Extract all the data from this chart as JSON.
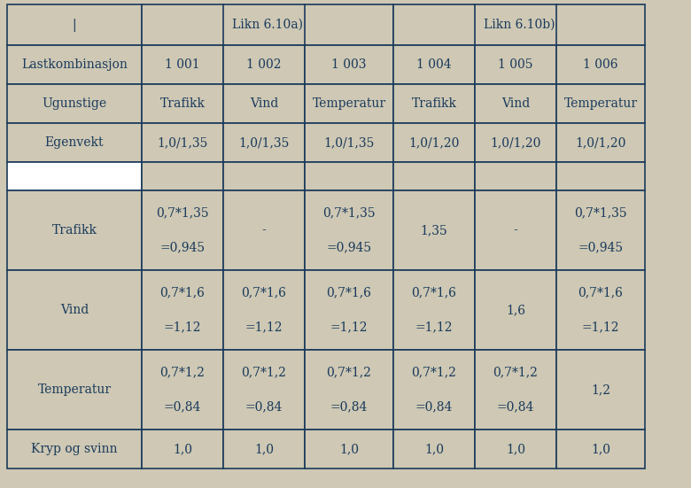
{
  "bg_color": "#cec8b4",
  "white_color": "#ffffff",
  "text_color": "#1a3a5c",
  "border_color": "#1a3a5c",
  "figsize": [
    7.8,
    5.51
  ],
  "dpi": 100,
  "row_header": [
    "",
    "Likn 6.10a)",
    "Likn 6.10b)"
  ],
  "row2": [
    "Lastkombinasjon",
    "1 001",
    "1 002",
    "1 003",
    "1 004",
    "1 005",
    "1 006"
  ],
  "row3": [
    "Ugunstige",
    "Trafikk",
    "Vind",
    "Temperatur",
    "Trafikk",
    "Vind",
    "Temperatur"
  ],
  "row4": [
    "Egenvekt",
    "1,0/1,35",
    "1,0/1,35",
    "1,0/1,35",
    "1,0/1,20",
    "1,0/1,20",
    "1,0/1,20"
  ],
  "row5": [
    "",
    "",
    "",
    "",
    "",
    "",
    ""
  ],
  "row6_label": "Trafikk",
  "row6": [
    "",
    "0,7*1,35\n\n=0,945",
    "-",
    "0,7*1,35\n\n=0,945",
    "1,35",
    "-",
    "0,7*1,35\n\n=0,945"
  ],
  "row7_label": "Vind",
  "row7": [
    "",
    "0,7*1,6\n\n=1,12",
    "0,7*1,6\n\n=1,12",
    "0,7*1,6\n\n=1,12",
    "0,7*1,6\n\n=1,12",
    "1,6",
    "0,7*1,6\n\n=1,12"
  ],
  "row8_label": "Temperatur",
  "row8": [
    "",
    "0,7*1,2\n\n=0,84",
    "0,7*1,2\n\n=0,84",
    "0,7*1,2\n\n=0,84",
    "0,7*1,2\n\n=0,84",
    "0,7*1,2\n\n=0,84",
    "1,2"
  ],
  "row9": [
    "Kryp og svinn",
    "1,0",
    "1,0",
    "1,0",
    "1,0",
    "1,0",
    "1,0"
  ],
  "font_size": 10,
  "font_family": "DejaVu Serif"
}
